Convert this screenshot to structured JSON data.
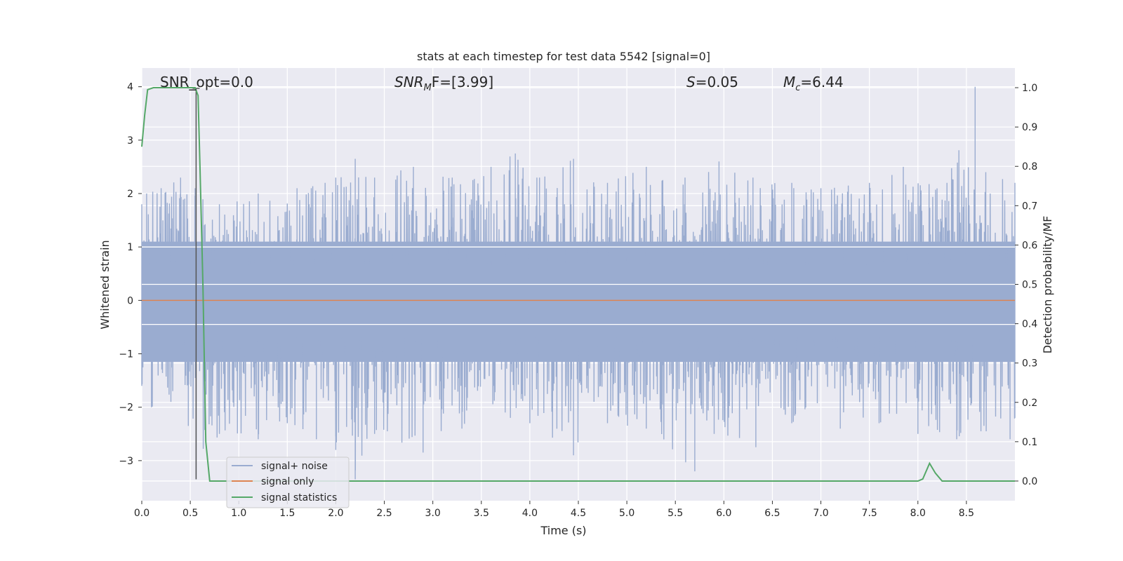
{
  "chart_data": {
    "type": "line",
    "title": "stats at each timestep for test data 5542 [signal=0]",
    "xlabel": "Time (s)",
    "ylabel_left": "Whitened strain",
    "ylabel_right": "Detection probability/MF",
    "xlim": [
      0.0,
      9.0
    ],
    "ylim_left": [
      -3.75,
      4.35
    ],
    "ylim_right": [
      -0.05,
      1.05
    ],
    "x_ticks": [
      "0.0",
      "0.5",
      "1.0",
      "1.5",
      "2.0",
      "2.5",
      "3.0",
      "3.5",
      "4.0",
      "4.5",
      "5.0",
      "5.5",
      "6.0",
      "6.5",
      "7.0",
      "7.5",
      "8.0",
      "8.5"
    ],
    "y_left_ticks": [
      "−3",
      "−2",
      "−1",
      "0",
      "1",
      "2",
      "3",
      "4"
    ],
    "y_right_ticks": [
      "0.0",
      "0.1",
      "0.2",
      "0.3",
      "0.4",
      "0.5",
      "0.6",
      "0.7",
      "0.8",
      "0.9",
      "1.0"
    ],
    "grid": true,
    "legend_placement": "lower-left",
    "annotations": {
      "snr_opt": "SNR_opt=0.0",
      "snr_mf_symbol": "SNR",
      "snr_mf_sub": "M",
      "snr_mf_rest": "F=[3.99]",
      "s_symbol": "S",
      "s_rest": "=0.05",
      "mc_symbol": "M",
      "mc_sub": "c",
      "mc_rest": "=6.44"
    },
    "marker_x": 0.56,
    "colors": {
      "background": "#eaeaf2",
      "noise": "#9aacd0",
      "signal": "#dd8452",
      "statistics": "#55a868",
      "marker": "#555555"
    },
    "series": [
      {
        "name": "signal+ noise",
        "axis": "left",
        "envelope_upper": [
          [
            0,
            1.8
          ],
          [
            0.05,
            2.0
          ],
          [
            0.2,
            2.1
          ],
          [
            0.4,
            2.3
          ],
          [
            0.55,
            2.1
          ],
          [
            0.8,
            1.8
          ],
          [
            1.2,
            2.0
          ],
          [
            1.6,
            2.1
          ],
          [
            2.0,
            2.3
          ],
          [
            2.2,
            2.65
          ],
          [
            2.4,
            2.3
          ],
          [
            2.8,
            2.5
          ],
          [
            3.2,
            2.3
          ],
          [
            3.6,
            2.5
          ],
          [
            3.85,
            2.75
          ],
          [
            4.1,
            2.3
          ],
          [
            4.45,
            2.65
          ],
          [
            4.8,
            2.2
          ],
          [
            5.2,
            2.5
          ],
          [
            5.6,
            2.3
          ],
          [
            5.95,
            2.6
          ],
          [
            6.3,
            2.3
          ],
          [
            6.7,
            2.2
          ],
          [
            7.0,
            2.1
          ],
          [
            7.5,
            2.2
          ],
          [
            7.85,
            2.5
          ],
          [
            8.3,
            2.2
          ],
          [
            8.59,
            4.0
          ],
          [
            8.7,
            2.4
          ],
          [
            9.0,
            2.2
          ]
        ],
        "envelope_lower": [
          [
            0,
            -1.6
          ],
          [
            0.1,
            -2.0
          ],
          [
            0.3,
            -1.9
          ],
          [
            0.48,
            -2.35
          ],
          [
            0.56,
            -3.35
          ],
          [
            0.8,
            -2.5
          ],
          [
            1.2,
            -2.6
          ],
          [
            1.5,
            -2.3
          ],
          [
            1.8,
            -2.6
          ],
          [
            2.0,
            -2.8
          ],
          [
            2.2,
            -3.35
          ],
          [
            2.4,
            -2.5
          ],
          [
            2.9,
            -2.85
          ],
          [
            3.3,
            -2.4
          ],
          [
            3.8,
            -2.2
          ],
          [
            4.0,
            -2.3
          ],
          [
            4.45,
            -2.9
          ],
          [
            4.8,
            -2.3
          ],
          [
            5.2,
            -2.4
          ],
          [
            5.7,
            -3.2
          ],
          [
            5.9,
            -2.5
          ],
          [
            6.33,
            -2.75
          ],
          [
            6.7,
            -2.3
          ],
          [
            7.2,
            -2.4
          ],
          [
            7.6,
            -2.3
          ],
          [
            8.0,
            -2.5
          ],
          [
            8.4,
            -2.6
          ],
          [
            8.65,
            -2.45
          ],
          [
            8.95,
            -2.6
          ],
          [
            9.0,
            -2.2
          ]
        ],
        "band_upper": 1.1,
        "band_lower": -1.15
      },
      {
        "name": "signal only",
        "axis": "left",
        "x": [
          0.0,
          9.0
        ],
        "y": [
          0.0,
          0.0
        ]
      },
      {
        "name": "signal statistics",
        "axis": "right",
        "x": [
          0.0,
          0.03,
          0.06,
          0.12,
          0.2,
          0.3,
          0.4,
          0.5,
          0.55,
          0.58,
          0.6,
          0.63,
          0.66,
          0.7,
          1.0,
          2.0,
          4.0,
          6.0,
          8.0,
          8.05,
          8.12,
          8.18,
          8.25,
          9.0
        ],
        "y": [
          0.85,
          0.93,
          0.995,
          1.0,
          1.0,
          1.0,
          1.0,
          1.0,
          1.0,
          0.98,
          0.8,
          0.5,
          0.1,
          0.0,
          0.0,
          0.0,
          0.0,
          0.0,
          0.0,
          0.005,
          0.045,
          0.02,
          0.0,
          0.0
        ]
      }
    ]
  }
}
